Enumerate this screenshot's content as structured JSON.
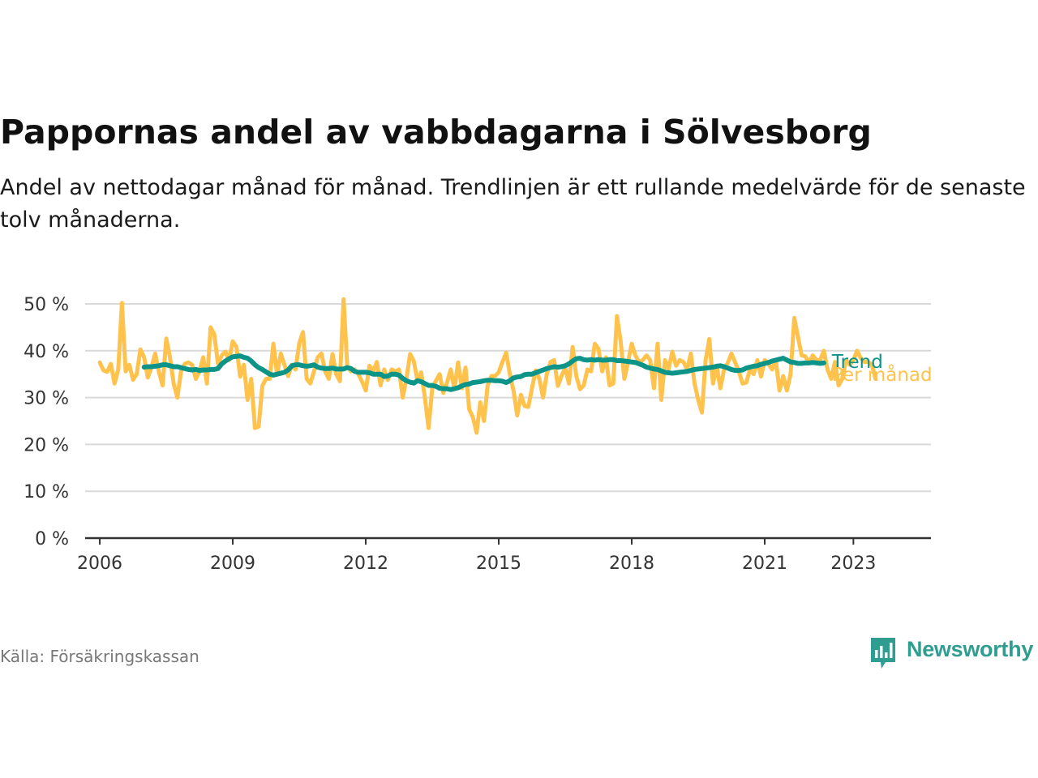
{
  "header": {
    "title": "Pappornas andel av vabbdagarna i Sölvesborg",
    "subtitle": "Andel av nettodagar månad för månad. Trendlinjen är ett rullande medelvärde för de senaste tolv månaderna."
  },
  "footer": {
    "source": "Källa: Försäkringskassan",
    "brand": "Newsworthy"
  },
  "colors": {
    "monthly": "#ffc34d",
    "trend": "#0d9488",
    "grid": "#d9d9d9",
    "axis": "#333333",
    "brand": "#2f9e91"
  },
  "chart_data": {
    "type": "line",
    "title": "Pappornas andel av vabbdagarna i Sölvesborg",
    "xlabel": "",
    "ylabel": "",
    "ylim": [
      0,
      50
    ],
    "xlim": [
      2005.67,
      2024.75
    ],
    "grid": true,
    "legend": "inline-right",
    "y_ticks": [
      0,
      10,
      20,
      30,
      40,
      50
    ],
    "y_tick_labels": [
      "0 %",
      "10 %",
      "20 %",
      "30 %",
      "40 %",
      "50 %"
    ],
    "x_ticks": [
      2006,
      2009,
      2012,
      2015,
      2018,
      2021,
      2023
    ],
    "x_tick_labels": [
      "2006",
      "2009",
      "2012",
      "2015",
      "2018",
      "2021",
      "2023"
    ],
    "x_start": 2006.0,
    "x_step": 0.0833333,
    "series": [
      {
        "name": "Per månad",
        "values": [
          37.5,
          35.8,
          35.5,
          37.2,
          33.0,
          36.0,
          50.2,
          35.6,
          37.0,
          33.8,
          35.0,
          40.3,
          38.6,
          34.3,
          36.5,
          39.4,
          35.5,
          32.6,
          42.6,
          38.6,
          33.0,
          30.0,
          35.6,
          37.2,
          37.5,
          37.0,
          34.0,
          35.6,
          38.6,
          33.0,
          45.0,
          43.5,
          37.2,
          39.0,
          39.8,
          38.0,
          42.0,
          40.8,
          34.5,
          37.0,
          29.5,
          34.0,
          23.5,
          23.8,
          32.5,
          34.0,
          34.0,
          41.5,
          35.0,
          39.4,
          37.0,
          34.6,
          37.0,
          36.0,
          41.6,
          44.0,
          34.0,
          33.0,
          35.6,
          38.6,
          39.4,
          35.6,
          34.0,
          39.3,
          35.0,
          33.5,
          51.0,
          36.6,
          35.6,
          36.0,
          35.0,
          33.4,
          31.5,
          36.8,
          35.6,
          37.6,
          32.6,
          36.0,
          33.8,
          36.0,
          35.6,
          36.0,
          30.0,
          34.0,
          39.3,
          37.8,
          33.6,
          35.4,
          30.0,
          23.5,
          32.0,
          33.6,
          35.0,
          31.0,
          33.2,
          36.0,
          31.8,
          37.5,
          32.0,
          36.4,
          27.5,
          25.8,
          22.5,
          29.0,
          25.0,
          32.6,
          34.6,
          34.6,
          35.4,
          37.6,
          39.6,
          35.0,
          31.5,
          26.2,
          30.6,
          28.2,
          28.0,
          32.0,
          35.8,
          34.0,
          30.0,
          35.0,
          37.6,
          38.0,
          32.5,
          34.6,
          36.4,
          33.0,
          40.8,
          34.6,
          31.8,
          32.6,
          36.0,
          35.6,
          41.5,
          40.4,
          35.6,
          38.6,
          32.6,
          33.0,
          47.4,
          42.0,
          34.0,
          37.6,
          41.5,
          39.0,
          37.6,
          38.0,
          39.0,
          38.0,
          32.0,
          41.5,
          29.5,
          38.0,
          36.2,
          39.8,
          36.8,
          38.0,
          37.6,
          36.0,
          39.4,
          33.0,
          29.5,
          26.8,
          38.0,
          42.5,
          33.0,
          36.8,
          32.0,
          36.0,
          37.4,
          39.4,
          37.5,
          35.6,
          33.0,
          33.2,
          36.0,
          35.0,
          38.0,
          34.5,
          38.0,
          37.2,
          36.0,
          38.0,
          31.5,
          34.6,
          31.5,
          35.0,
          47.0,
          43.0,
          39.0,
          38.8,
          37.4,
          39.0,
          38.0,
          38.0,
          40.0,
          36.0,
          34.0,
          37.6,
          32.6,
          34.0,
          38.0,
          37.0,
          38.0,
          40.0,
          38.4,
          37.6,
          37.6,
          37.0,
          34.0
        ]
      },
      {
        "name": "Trend",
        "start_index": 12,
        "values": [
          36.5,
          36.6,
          36.6,
          36.7,
          36.8,
          37.0,
          37.0,
          36.8,
          36.6,
          36.6,
          36.4,
          36.2,
          36.0,
          35.9,
          36.0,
          35.8,
          35.9,
          35.9,
          36.0,
          36.0,
          36.2,
          37.2,
          37.8,
          38.3,
          38.7,
          38.8,
          38.9,
          38.6,
          38.4,
          37.8,
          37.0,
          36.4,
          36.0,
          35.5,
          35.0,
          34.8,
          35.0,
          35.2,
          35.4,
          35.9,
          36.8,
          37.0,
          37.0,
          36.8,
          36.7,
          36.8,
          37.0,
          36.5,
          36.3,
          36.2,
          36.2,
          36.3,
          36.1,
          36.1,
          36.1,
          36.4,
          36.2,
          35.6,
          35.4,
          35.4,
          35.4,
          35.3,
          35.0,
          35.0,
          35.0,
          34.5,
          34.6,
          35.0,
          35.0,
          34.8,
          34.1,
          33.6,
          33.3,
          33.1,
          33.6,
          33.4,
          33.0,
          32.6,
          32.6,
          32.4,
          32.0,
          31.9,
          31.9,
          31.7,
          31.9,
          32.1,
          32.5,
          32.8,
          32.9,
          33.2,
          33.3,
          33.4,
          33.6,
          33.7,
          33.7,
          33.6,
          33.6,
          33.5,
          33.2,
          33.6,
          34.2,
          34.4,
          34.5,
          34.9,
          35.0,
          35.0,
          35.3,
          35.6,
          35.9,
          36.2,
          36.4,
          36.6,
          36.5,
          36.6,
          36.8,
          37.2,
          37.8,
          38.3,
          38.4,
          38.1,
          38.0,
          38.1,
          38.0,
          38.1,
          38.0,
          38.0,
          38.1,
          38.1,
          37.9,
          37.9,
          37.8,
          37.7,
          37.6,
          37.5,
          37.2,
          36.9,
          36.5,
          36.3,
          36.1,
          36.0,
          35.7,
          35.4,
          35.3,
          35.2,
          35.3,
          35.4,
          35.5,
          35.6,
          35.8,
          36.0,
          36.1,
          36.2,
          36.3,
          36.4,
          36.5,
          36.7,
          36.8,
          36.6,
          36.3,
          36.0,
          35.8,
          35.8,
          35.9,
          36.3,
          36.5,
          36.7,
          36.8,
          37.1,
          37.3,
          37.5,
          37.8,
          38.0,
          38.2,
          38.4,
          38.0,
          37.6,
          37.5,
          37.3,
          37.3,
          37.4,
          37.4,
          37.5,
          37.4,
          37.3,
          37.4
        ]
      }
    ]
  }
}
